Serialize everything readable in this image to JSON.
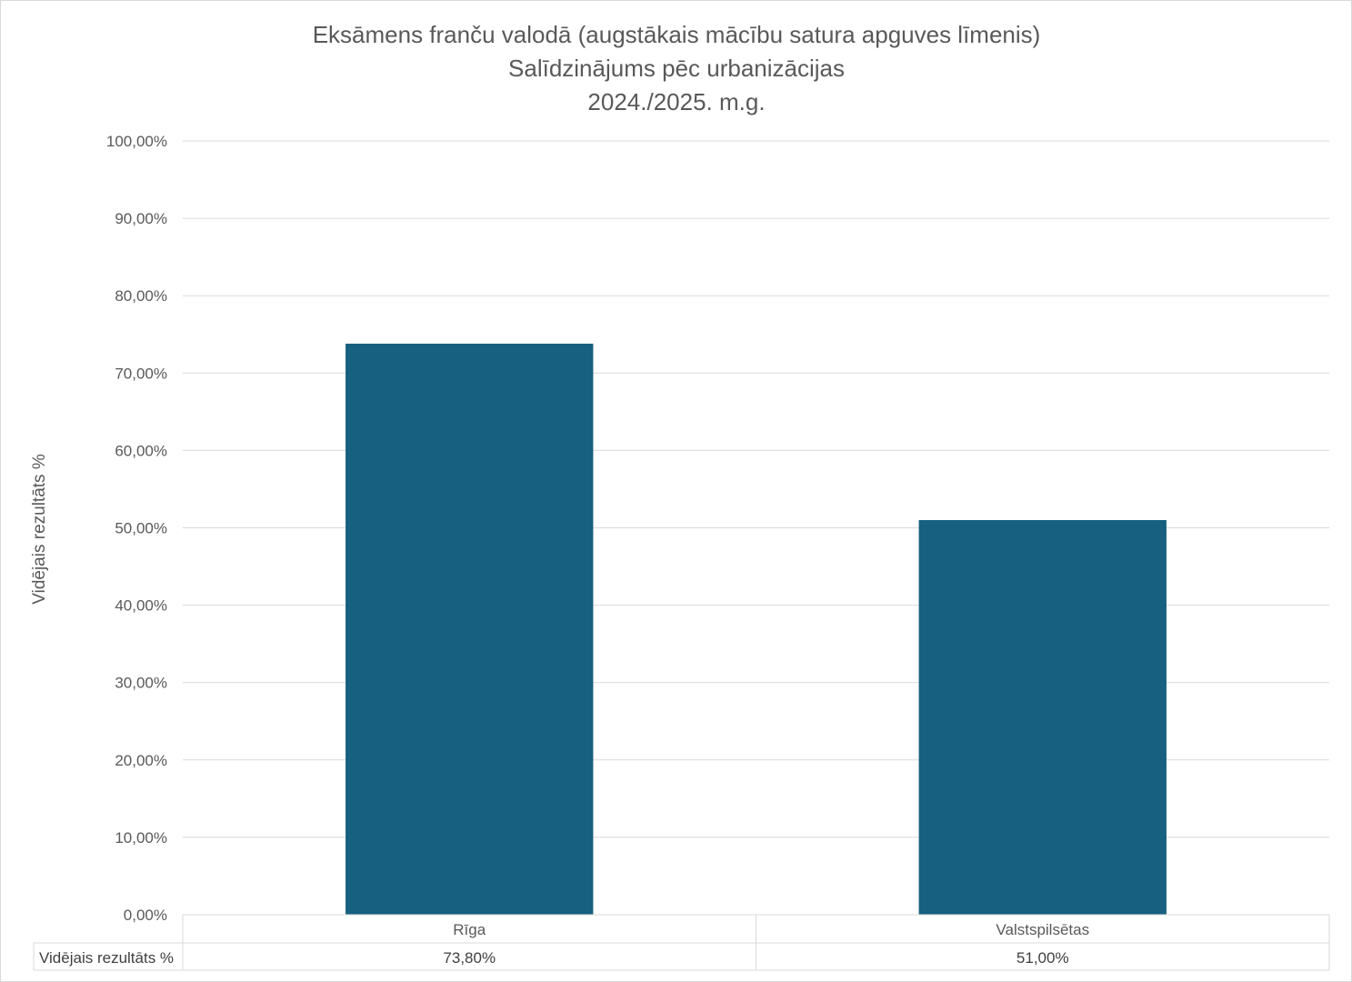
{
  "chart_data": {
    "type": "bar",
    "title": [
      "Eksāmens franču valodā (augstākais mācību satura apguves līmenis)",
      "Salīdzinājums pēc urbanizācijas",
      "2024./2025. m.g."
    ],
    "ylabel": "Vidējais rezultāts %",
    "xlabel": "",
    "categories": [
      "Rīga",
      "Valstspilsētas"
    ],
    "series": [
      {
        "name": "Vidējais rezultāts %",
        "values": [
          73.8,
          51.0
        ],
        "value_labels": [
          "73,80%",
          "51,00%"
        ],
        "color": "#17607f"
      }
    ],
    "ylim": [
      0,
      100
    ],
    "yticks": [
      0,
      10,
      20,
      30,
      40,
      50,
      60,
      70,
      80,
      90,
      100
    ],
    "ytick_labels": [
      "0,00%",
      "10,00%",
      "20,00%",
      "30,00%",
      "40,00%",
      "50,00%",
      "60,00%",
      "70,00%",
      "80,00%",
      "90,00%",
      "100,00%"
    ],
    "grid": true,
    "legend": "none",
    "data_table": true,
    "gridline_color": "#d9d9d9"
  }
}
